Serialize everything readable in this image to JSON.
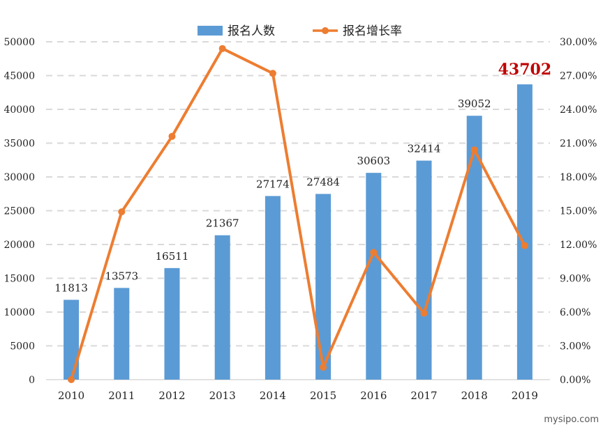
{
  "chart_data": {
    "type": "bar+line",
    "categories": [
      "2010",
      "2011",
      "2012",
      "2013",
      "2014",
      "2015",
      "2016",
      "2017",
      "2018",
      "2019"
    ],
    "series": [
      {
        "name": "报名人数",
        "type": "bar",
        "axis": "left",
        "color": "#5b9bd5",
        "values": [
          11813,
          13573,
          16511,
          21367,
          27174,
          27484,
          30603,
          32414,
          39052,
          43702
        ],
        "labels": [
          "11813",
          "13573",
          "16511",
          "21367",
          "27174",
          "27484",
          "30603",
          "32414",
          "39052",
          "43702"
        ]
      },
      {
        "name": "报名增长率",
        "type": "line",
        "axis": "right",
        "color": "#ed7d31",
        "values": [
          0.0,
          14.9,
          21.6,
          29.4,
          27.2,
          1.1,
          11.3,
          5.9,
          20.4,
          11.9
        ]
      }
    ],
    "left_axis": {
      "min": 0,
      "max": 50000,
      "ticks": [
        "0",
        "5000",
        "10000",
        "15000",
        "20000",
        "25000",
        "30000",
        "35000",
        "40000",
        "45000",
        "50000"
      ]
    },
    "right_axis": {
      "min": 0,
      "max": 30,
      "ticks": [
        "0.00%",
        "3.00%",
        "6.00%",
        "9.00%",
        "12.00%",
        "15.00%",
        "18.00%",
        "21.00%",
        "24.00%",
        "27.00%",
        "30.00%"
      ]
    },
    "highlight_label_color": "#c00000",
    "grid": true,
    "legend_position": "top-center"
  },
  "watermark": "mysipo.com"
}
